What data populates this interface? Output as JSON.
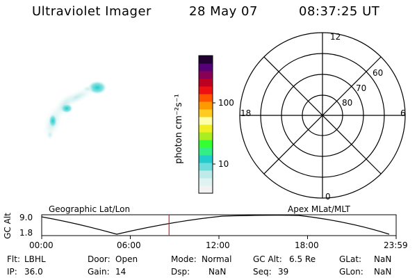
{
  "header": {
    "instrument": "Ultraviolet Imager",
    "date": "28 May 07",
    "time": "08:37:25 UT"
  },
  "colorbar": {
    "unit_label": "photon cm⁻²s⁻¹",
    "tick_labels": [
      "100",
      "10"
    ],
    "colors": [
      "#f2f2f2",
      "#dff3f3",
      "#bfeaea",
      "#6fdcdc",
      "#22cccc",
      "#33ee88",
      "#33ff33",
      "#aaee22",
      "#eeee22",
      "#ffffaa",
      "#ffcc22",
      "#ff9900",
      "#ff5500",
      "#ee1111",
      "#bb0022",
      "#880055",
      "#550077",
      "#220033"
    ]
  },
  "polar": {
    "mlt_labels": {
      "top": "12",
      "left": "18",
      "right": "6",
      "bottom": "0"
    },
    "lat_labels": [
      "60",
      "70",
      "80"
    ]
  },
  "timeline": {
    "left_title": "Geographic Lat/Lon",
    "right_title": "Apex MLat/MLT",
    "y_axis_label": "GC Alt",
    "y_ticks": [
      "9.0",
      "1.8"
    ],
    "x_ticks": [
      "00:00",
      "06:00",
      "12:00",
      "18:00",
      "23:59"
    ],
    "marker_color": "#cc2222",
    "marker_time_hours": 8.624
  },
  "info": {
    "flt_label": "Flt:",
    "flt_value": "LBHL",
    "ip_label": "IP:",
    "ip_value": "36.0",
    "door_label": "Door:",
    "door_value": "Open",
    "gain_label": "Gain:",
    "gain_value": "14",
    "mode_label": "Mode:",
    "mode_value": "Normal",
    "dsp_label": "Dsp:",
    "dsp_value": "NaN",
    "gcalt_label": "GC Alt:",
    "gcalt_value": "6.5 Re",
    "seq_label": "Seq:",
    "seq_value": "39",
    "glat_label": "GLat:",
    "glat_value": "NaN",
    "glon_label": "GLon:",
    "glon_value": "NaN"
  }
}
